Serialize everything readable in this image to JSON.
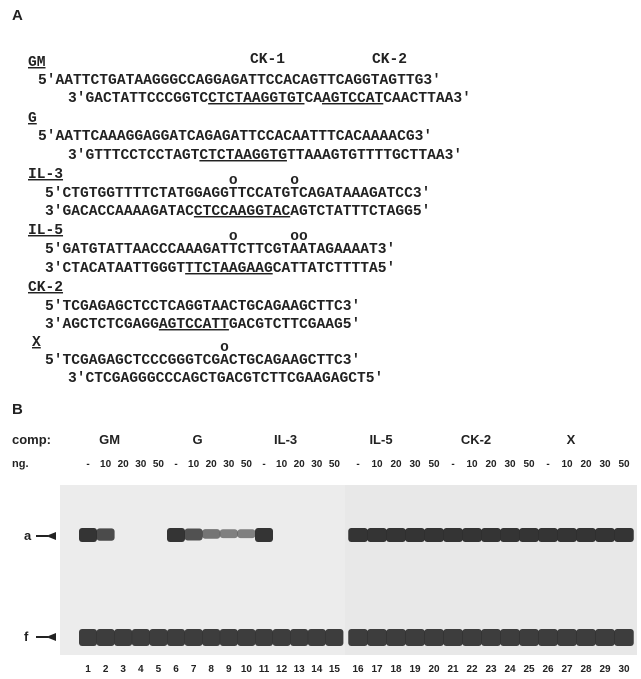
{
  "panel_a": {
    "label": "A",
    "ck_labels": [
      "CK-1",
      "CK-2"
    ],
    "groups": [
      {
        "name": "GM",
        "strands": [
          {
            "segments": [
              {
                "text": "5'AATTCTGATAAGGGCCAGGAGATTCCACAGTTCAGGTAGTTG3'"
              }
            ]
          },
          {
            "segments": [
              {
                "text": "3'GACTATTCCCGGTC"
              },
              {
                "text": "CTCTAAGGTGT",
                "underline": true
              },
              {
                "text": "CA"
              },
              {
                "text": "AGTCCAT",
                "underline": true
              },
              {
                "text": "CAACTTAA3'"
              }
            ]
          }
        ]
      },
      {
        "name": "G",
        "strands": [
          {
            "segments": [
              {
                "text": "5'AATTCAAAGGAGGATCAGAGATTCCACAATTTCACAAAACG3'"
              }
            ]
          },
          {
            "segments": [
              {
                "text": "3'GTTTCCTCCTAGT"
              },
              {
                "text": "CTCTAAGGTG",
                "underline": true
              },
              {
                "text": "TTAAAGTGTTTTGCTTAA3'"
              }
            ]
          }
        ]
      },
      {
        "name": "IL-3",
        "strands": [
          {
            "circles": "                     o      o",
            "segments": [
              {
                "text": "5'CTGTGGTTTTCTATGGAGGTTCCATGTCAGATAAAGATCC3'"
              }
            ]
          },
          {
            "segments": [
              {
                "text": "3'GACACCAAAAGATAC"
              },
              {
                "text": "CTCCAAGGTAC",
                "underline": true
              },
              {
                "text": "AGTCTATTTCTAGG5'"
              }
            ]
          }
        ]
      },
      {
        "name": "IL-5",
        "strands": [
          {
            "circles": "                     o      oo",
            "segments": [
              {
                "text": "5'GATGTATTAACCCAAAGATTCTTCGTAATAGAAAAT3'"
              }
            ]
          },
          {
            "segments": [
              {
                "text": "3'CTACATAATTGGGT"
              },
              {
                "text": "TTCTAAGAAG",
                "underline": true
              },
              {
                "text": "CATTATCTTTTA5'"
              }
            ]
          }
        ]
      },
      {
        "name": "CK-2",
        "strands": [
          {
            "segments": [
              {
                "text": "5'TCGAGAGCTCCTCAGGTAACTGCAGAAGCTTC3'"
              }
            ]
          },
          {
            "segments": [
              {
                "text": "3'AGCTCTCGAGG"
              },
              {
                "text": "AGTCCATT",
                "underline": true
              },
              {
                "text": "GACGTCTTCGAAG5'"
              }
            ]
          }
        ]
      },
      {
        "name": "X",
        "strands": [
          {
            "circles": "                    o",
            "segments": [
              {
                "text": "5'TCGAGAGCTCCCGGGTCGACTGCAGAAGCTTC3'"
              }
            ]
          },
          {
            "segments": [
              {
                "text": "3'CTCGAGGGCCCAGCTGACGTCTTCGAAGAGCT5'"
              }
            ]
          }
        ]
      }
    ]
  },
  "panel_b": {
    "label": "B",
    "comp_label": "comp:",
    "ng_label": "ng.",
    "groups": [
      {
        "name": "GM",
        "doses": [
          "-",
          "10",
          "20",
          "30",
          "50"
        ]
      },
      {
        "name": "G",
        "doses": [
          "-",
          "10",
          "20",
          "30",
          "50"
        ]
      },
      {
        "name": "IL-3",
        "doses": [
          "-",
          "10",
          "20",
          "30",
          "50"
        ]
      },
      {
        "name": "IL-5",
        "doses": [
          "-",
          "10",
          "20",
          "30",
          "50"
        ]
      },
      {
        "name": "CK-2",
        "doses": [
          "-",
          "10",
          "20",
          "30",
          "50"
        ]
      },
      {
        "name": "X",
        "doses": [
          "-",
          "10",
          "20",
          "30",
          "50"
        ]
      }
    ],
    "bands": [
      "a",
      "f"
    ],
    "lanes": [
      "1",
      "2",
      "3",
      "4",
      "5",
      "6",
      "7",
      "8",
      "9",
      "10",
      "11",
      "12",
      "13",
      "14",
      "15",
      "16",
      "17",
      "18",
      "19",
      "20",
      "21",
      "22",
      "23",
      "24",
      "25",
      "26",
      "27",
      "28",
      "29",
      "30"
    ]
  }
}
